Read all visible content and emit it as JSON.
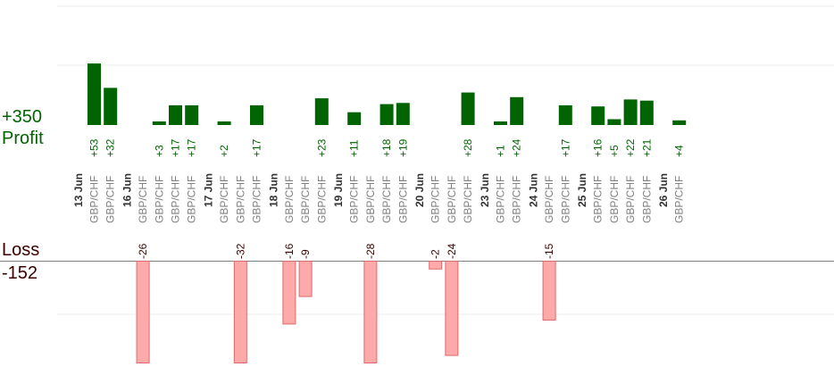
{
  "labels": {
    "profit_max": "+350",
    "profit": "Profit",
    "loss": "Loss",
    "loss_max": "-152"
  },
  "colors": {
    "profit_bar": "#006400",
    "loss_bar": "#ffaaaa",
    "loss_bar_stroke": "#e06a6a",
    "profit_text": "#006400",
    "loss_text": "#3a0000",
    "axis": "#808080",
    "grid": "#eeeeee",
    "date_text": "#333333",
    "pair_text": "#808080"
  },
  "chart_data": {
    "type": "bar",
    "title": "",
    "profit_max": 350,
    "loss_max": 152,
    "grid": true,
    "trades": [
      {
        "date": "13 Jun",
        "pair": "GBP/CHF",
        "value": 53
      },
      {
        "date": "13 Jun",
        "pair": "GBP/CHF",
        "value": 32
      },
      {
        "date": "16 Jun",
        "pair": "GBP/CHF",
        "value": -26
      },
      {
        "date": "16 Jun",
        "pair": "GBP/CHF",
        "value": 3
      },
      {
        "date": "16 Jun",
        "pair": "GBP/CHF",
        "value": 17
      },
      {
        "date": "16 Jun",
        "pair": "GBP/CHF",
        "value": 17
      },
      {
        "date": "17 Jun",
        "pair": "GBP/CHF",
        "value": 2
      },
      {
        "date": "17 Jun",
        "pair": "GBP/CHF",
        "value": -32
      },
      {
        "date": "17 Jun",
        "pair": "GBP/CHF",
        "value": 17
      },
      {
        "date": "18 Jun",
        "pair": "GBP/CHF",
        "value": -16
      },
      {
        "date": "18 Jun",
        "pair": "GBP/CHF",
        "value": -9
      },
      {
        "date": "18 Jun",
        "pair": "GBP/CHF",
        "value": 23
      },
      {
        "date": "19 Jun",
        "pair": "GBP/CHF",
        "value": 11
      },
      {
        "date": "19 Jun",
        "pair": "GBP/CHF",
        "value": -28
      },
      {
        "date": "19 Jun",
        "pair": "GBP/CHF",
        "value": 18
      },
      {
        "date": "19 Jun",
        "pair": "GBP/CHF",
        "value": 19
      },
      {
        "date": "20 Jun",
        "pair": "GBP/CHF",
        "value": -2
      },
      {
        "date": "20 Jun",
        "pair": "GBP/CHF",
        "value": -24
      },
      {
        "date": "20 Jun",
        "pair": "GBP/CHF",
        "value": 28
      },
      {
        "date": "23 Jun",
        "pair": "GBP/CHF",
        "value": 1
      },
      {
        "date": "23 Jun",
        "pair": "GBP/CHF",
        "value": 24
      },
      {
        "date": "24 Jun",
        "pair": "GBP/CHF",
        "value": -15
      },
      {
        "date": "24 Jun",
        "pair": "GBP/CHF",
        "value": 17
      },
      {
        "date": "25 Jun",
        "pair": "GBP/CHF",
        "value": 16
      },
      {
        "date": "25 Jun",
        "pair": "GBP/CHF",
        "value": 5
      },
      {
        "date": "25 Jun",
        "pair": "GBP/CHF",
        "value": 22
      },
      {
        "date": "25 Jun",
        "pair": "GBP/CHF",
        "value": 21
      },
      {
        "date": "26 Jun",
        "pair": "GBP/CHF",
        "value": 4
      }
    ]
  }
}
